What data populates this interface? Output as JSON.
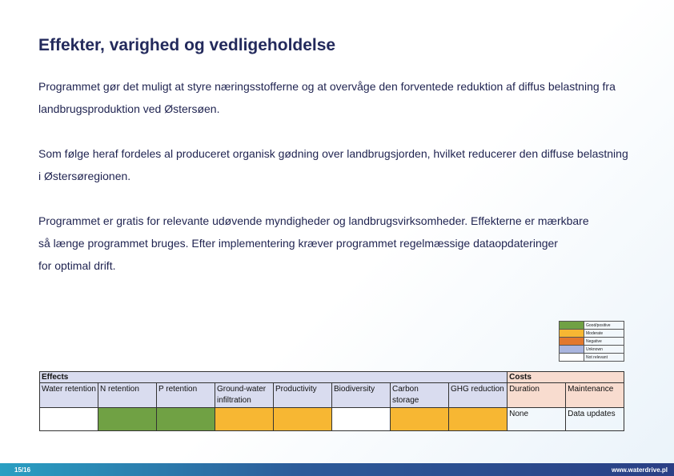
{
  "title": "Effekter, varighed og vedligeholdelse",
  "paragraphs": [
    [
      "Programmet gør det muligt at styre næringsstofferne og at overvåge den forventede reduktion af diffus belastning fra",
      "landbrugsproduktion ved Østersøen."
    ],
    [
      "Som følge heraf fordeles al produceret organisk gødning over landbrugsjorden, hvilket reducerer den diffuse belastning",
      "i Østersøregionen."
    ],
    [
      "Programmet er gratis for relevante udøvende myndigheder og landbrugsvirksomheder. Effekterne er mærkbare",
      "så længe programmet bruges. Efter implementering kræver programmet regelmæssige dataopdateringer",
      "for optimal drift."
    ]
  ],
  "legend": [
    {
      "label": "Good/positive",
      "color": "#70a144"
    },
    {
      "label": "Moderate",
      "color": "#f7b733"
    },
    {
      "label": "Negative",
      "color": "#e2782d"
    },
    {
      "label": "Unknown",
      "color": "#aab5de"
    },
    {
      "label": "Not relevant",
      "color": "#ffffff"
    }
  ],
  "table": {
    "effects_header": "Effects",
    "costs_header": "Costs",
    "effect_columns": [
      "Water retention",
      "N retention",
      "P retention",
      "Ground-water infiltration",
      "Productivity",
      "Biodiversity",
      "Carbon storage",
      "GHG reduction"
    ],
    "effect_colors": [
      "#ffffff",
      "#70a144",
      "#70a144",
      "#f7b733",
      "#f7b733",
      "#ffffff",
      "#f7b733",
      "#f7b733"
    ],
    "cost_columns": [
      "Duration",
      "Maintenance"
    ],
    "cost_values": [
      "None",
      "Data updates"
    ]
  },
  "footer": {
    "page": "15/16",
    "url": "www.waterdrive.pl"
  }
}
